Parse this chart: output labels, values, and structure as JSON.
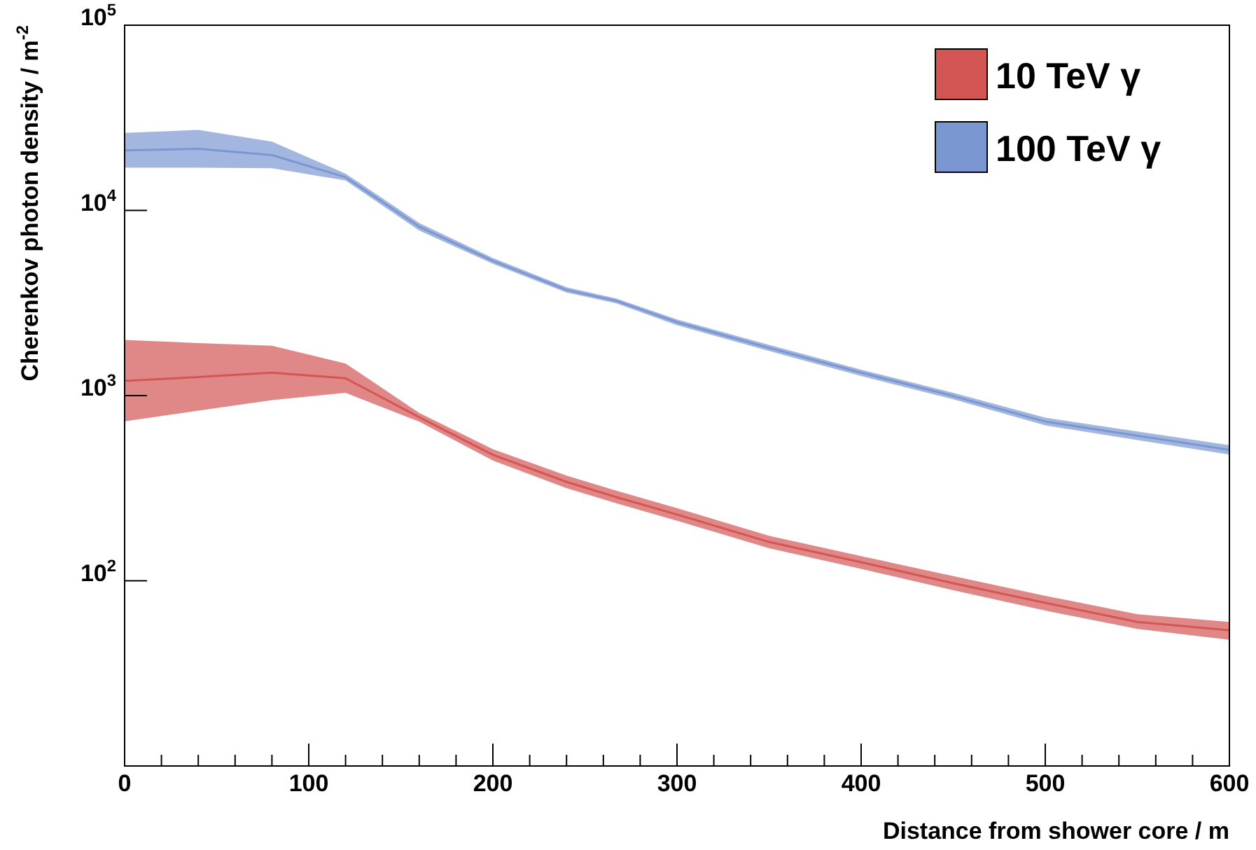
{
  "chart_data": {
    "type": "line",
    "xlabel": "Distance from shower core / m",
    "ylabel": "Cherenkov photon density / m$^{-2}$",
    "log": "y",
    "legend": "top right",
    "grid": false,
    "x": [
      0,
      40,
      80,
      120,
      160,
      200,
      240,
      267,
      300,
      350,
      400,
      450,
      500,
      550,
      600
    ],
    "xlim": [
      0,
      600
    ],
    "xticks": [
      0,
      {
        "value": 20,
        "label": null
      },
      {
        "value": 40,
        "label": null
      },
      {
        "value": 60,
        "label": null
      },
      {
        "value": 80,
        "label": null
      },
      100,
      {
        "value": 120,
        "label": null
      },
      {
        "value": 140,
        "label": null
      },
      {
        "value": 160,
        "label": null
      },
      {
        "value": 180,
        "label": null
      },
      200,
      {
        "value": 220,
        "label": null
      },
      {
        "value": 240,
        "label": null
      },
      {
        "value": 260,
        "label": null
      },
      {
        "value": 280,
        "label": null
      },
      300,
      {
        "value": 320,
        "label": null
      },
      {
        "value": 340,
        "label": null
      },
      {
        "value": 360,
        "label": null
      },
      {
        "value": 380,
        "label": null
      },
      400,
      {
        "value": 420,
        "label": null
      },
      {
        "value": 440,
        "label": null
      },
      {
        "value": 460,
        "label": null
      },
      {
        "value": 480,
        "label": null
      },
      500,
      {
        "value": 520,
        "label": null
      },
      {
        "value": 540,
        "label": null
      },
      {
        "value": 560,
        "label": null
      },
      {
        "value": 580,
        "label": null
      },
      600
    ],
    "ylim": [
      10,
      100000
    ],
    "yticks": [
      {
        "value": 100,
        "label": "10$^{2}$"
      },
      {
        "value": 1000,
        "label": "10$^{3}$"
      },
      {
        "value": 10000,
        "label": "10$^{4}$"
      },
      {
        "value": 100000,
        "label": "10$^{5}$"
      }
    ],
    "series": [
      {
        "name": "10 TeV γ",
        "color": "#d35654",
        "values": [
          1200,
          1260,
          1330,
          1240,
          764,
          479,
          342,
          283,
          228,
          162,
          126,
          97,
          76,
          60,
          54
        ],
        "lower": [
          726,
          830,
          945,
          1035,
          723,
          446,
          316,
          262,
          211,
          150,
          116,
          89,
          69,
          55,
          48
        ],
        "upper": [
          2000,
          1920,
          1860,
          1490,
          807,
          514,
          370,
          307,
          247,
          175,
          136,
          106,
          83,
          66,
          60
        ]
      },
      {
        "name": "100 TeV γ",
        "color": "#7b97d2",
        "values": [
          21100,
          21500,
          19900,
          15100,
          8160,
          5340,
          3720,
          3250,
          2490,
          1810,
          1330,
          995,
          724,
          607,
          509
        ],
        "lower": [
          17000,
          17000,
          16900,
          14500,
          7780,
          5150,
          3600,
          3150,
          2400,
          1740,
          1275,
          955,
          690,
          575,
          480
        ],
        "upper": [
          26200,
          27200,
          23500,
          15800,
          8550,
          5530,
          3850,
          3350,
          2580,
          1880,
          1380,
          1035,
          760,
          640,
          540
        ]
      }
    ]
  }
}
